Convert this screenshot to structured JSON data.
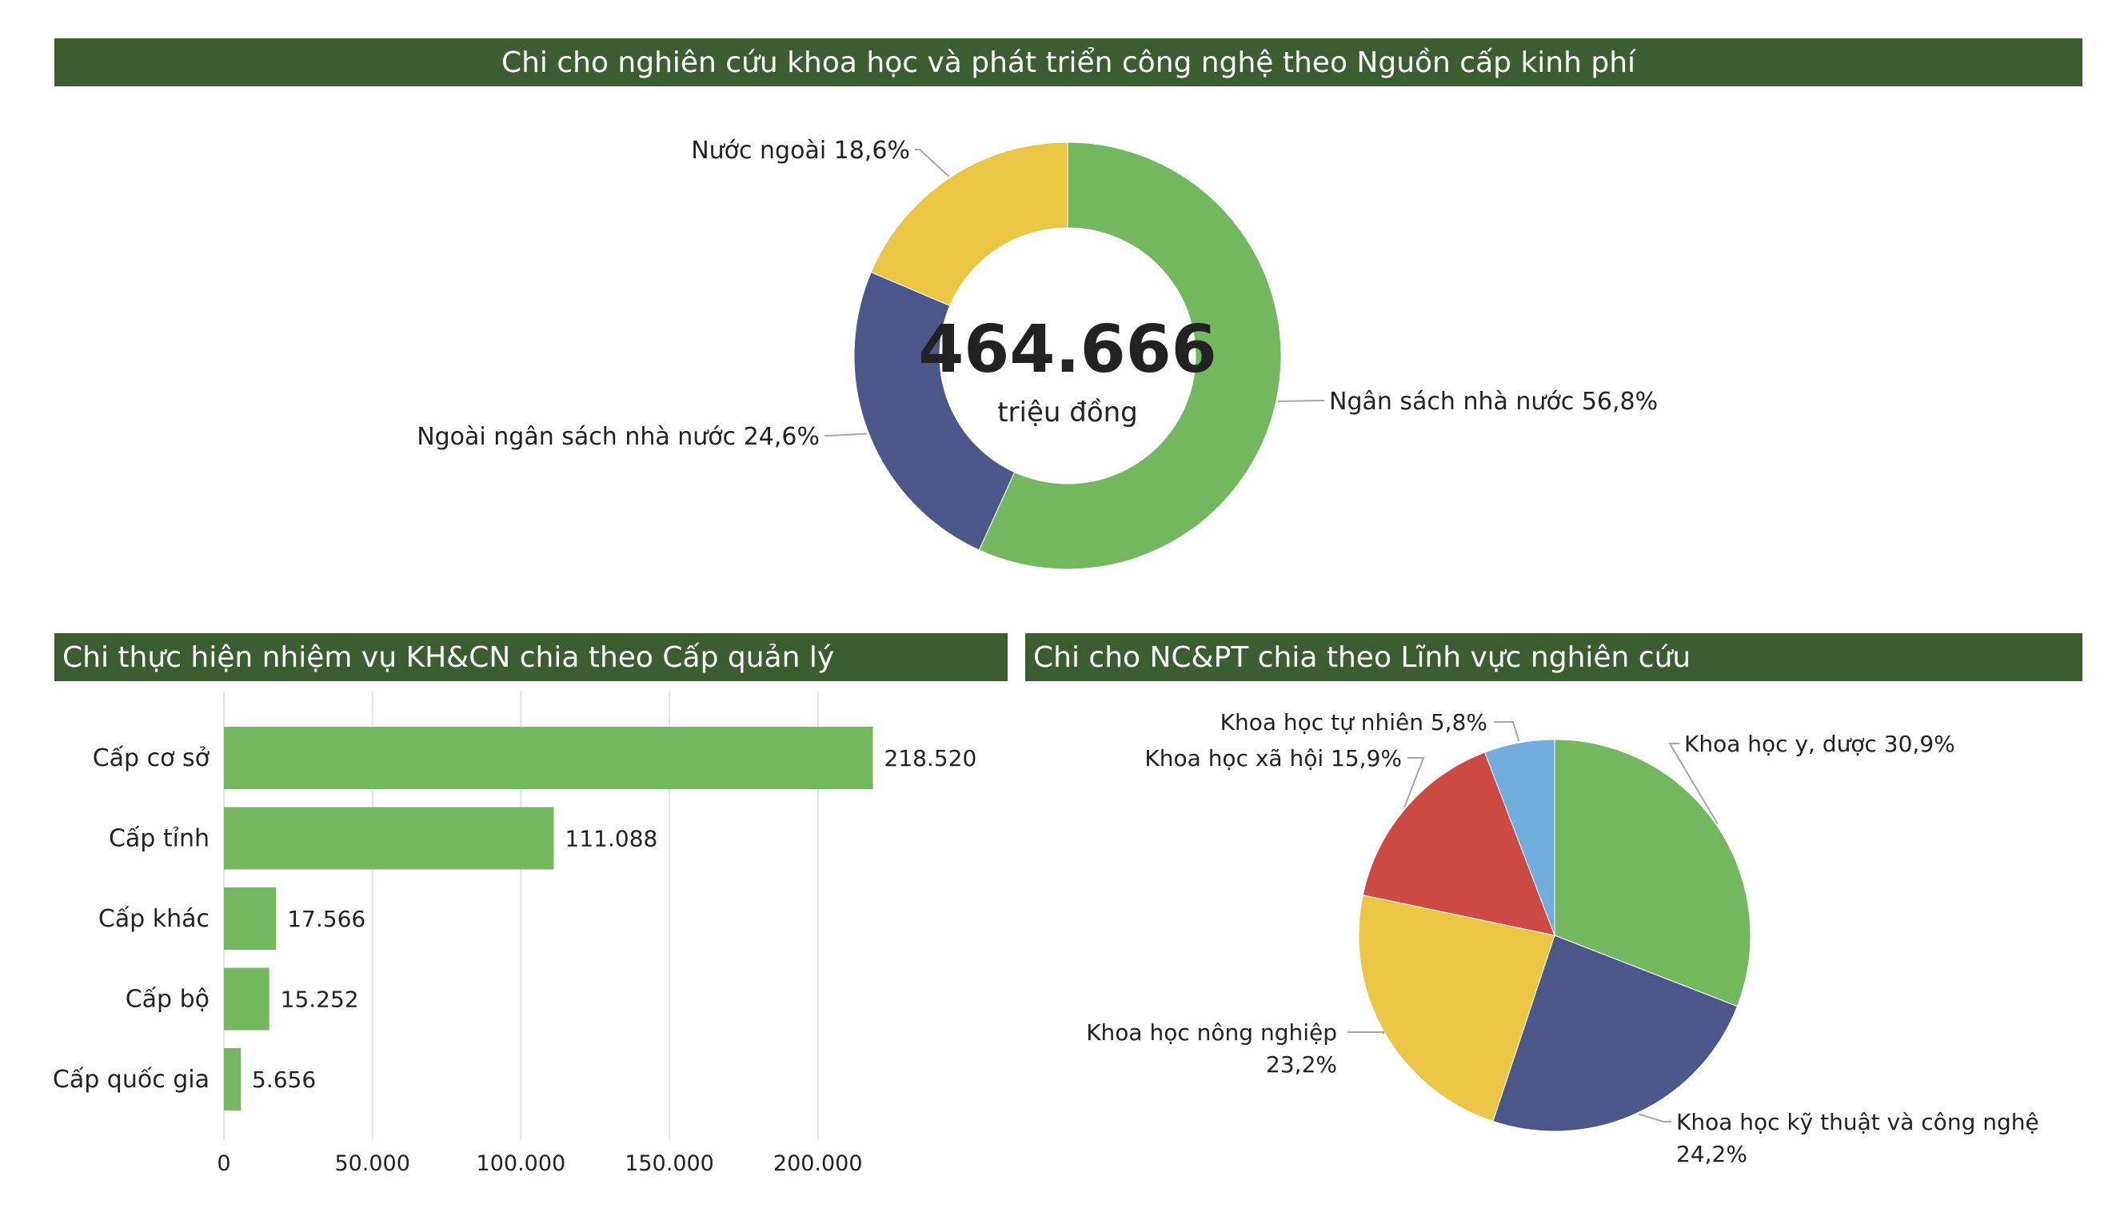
{
  "chart_data": [
    {
      "type": "pie",
      "variant": "donut",
      "title": "Chi cho nghiên cứu khoa học và phát triển công nghệ theo Nguồn cấp kinh phí",
      "center_value": "464.666",
      "center_unit": "triệu đồng",
      "slices": [
        {
          "label": "Ngân sách nhà nước 56,8%",
          "value": 56.8,
          "color": "#73b75f"
        },
        {
          "label": "Ngoài ngân sách nhà nước 24,6%",
          "value": 24.6,
          "color": "#4a5788"
        },
        {
          "label": "Nước ngoài 18,6%",
          "value": 18.6,
          "color": "#ebc544"
        }
      ]
    },
    {
      "type": "bar",
      "orientation": "horizontal",
      "title": "Chi thực hiện nhiệm vụ KH&CN chia theo Cấp quản lý",
      "categories": [
        "Cấp cơ sở",
        "Cấp tỉnh",
        "Cấp khác",
        "Cấp bộ",
        "Cấp quốc gia"
      ],
      "values": [
        218520,
        111088,
        17566,
        15252,
        5656
      ],
      "value_labels": [
        "218.520",
        "111.088",
        "17.566",
        "15.252",
        "5.656"
      ],
      "xlim": [
        0,
        218520
      ],
      "xticks": [
        0,
        50000,
        100000,
        150000,
        200000
      ],
      "xtick_labels": [
        "0",
        "50.000",
        "100.000",
        "150.000",
        "200.000"
      ],
      "grid": "vertical",
      "bar_color": "#73b75f"
    },
    {
      "type": "pie",
      "title": "Chi cho NC&PT chia theo Lĩnh vực nghiên cứu",
      "slices": [
        {
          "label": "Khoa học y, dược 30,9%",
          "value": 30.9,
          "color": "#73b75f"
        },
        {
          "label": "Khoa học kỹ thuật và công nghệ\n24,2%",
          "value": 24.2,
          "color": "#4a5788"
        },
        {
          "label": "Khoa học nông nghiệp\n23,2%",
          "value": 23.2,
          "color": "#ebc544"
        },
        {
          "label": "Khoa học xã hội 15,9%",
          "value": 15.9,
          "color": "#cc4a43"
        },
        {
          "label": "Khoa học tự nhiên 5,8%",
          "value": 5.8,
          "color": "#72ade0"
        }
      ]
    }
  ]
}
